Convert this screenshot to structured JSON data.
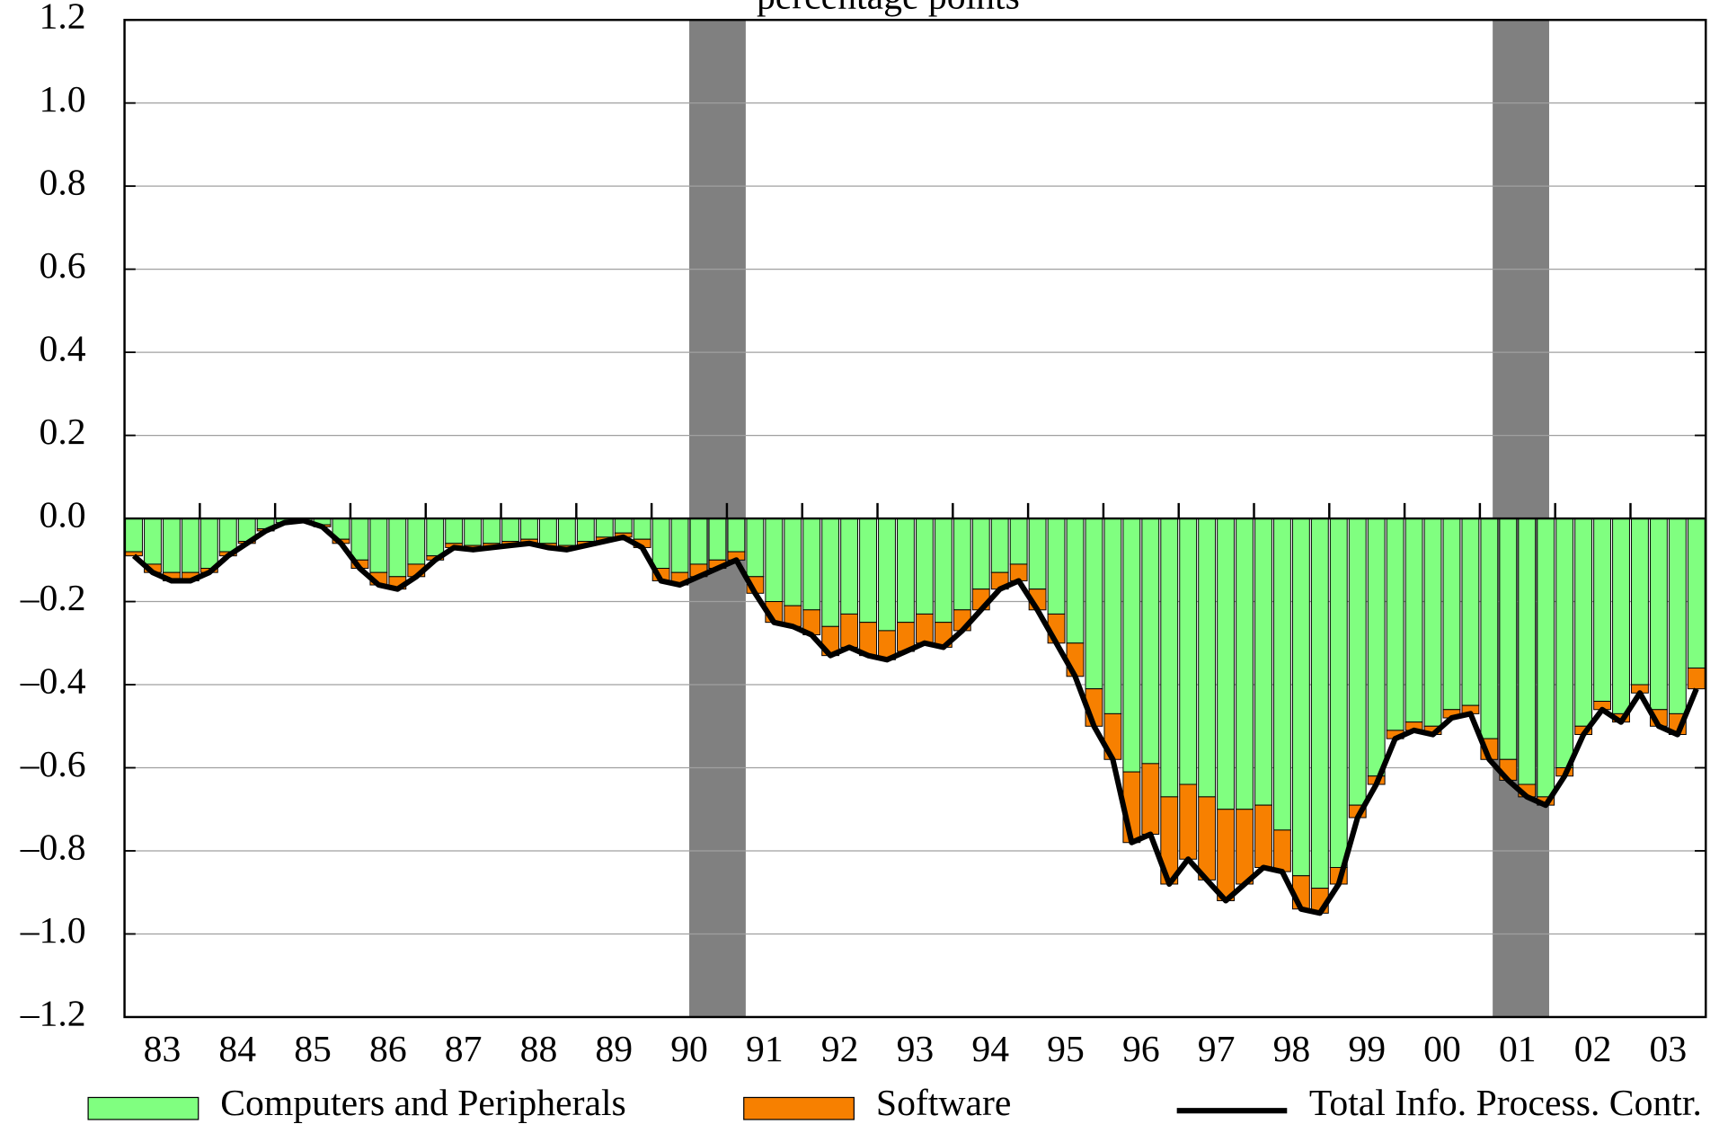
{
  "chart_data": {
    "type": "stacked_bar_line",
    "subtitle": "percentage points",
    "x": [
      1983.125,
      1983.375,
      1983.625,
      1983.875,
      1984.125,
      1984.375,
      1984.625,
      1984.875,
      1985.125,
      1985.375,
      1985.625,
      1985.875,
      1986.125,
      1986.375,
      1986.625,
      1986.875,
      1987.125,
      1987.375,
      1987.625,
      1987.875,
      1988.125,
      1988.375,
      1988.625,
      1988.875,
      1989.125,
      1989.375,
      1989.625,
      1989.875,
      1990.125,
      1990.375,
      1990.625,
      1990.875,
      1991.125,
      1991.375,
      1991.625,
      1991.875,
      1992.125,
      1992.375,
      1992.625,
      1992.875,
      1993.125,
      1993.375,
      1993.625,
      1993.875,
      1994.125,
      1994.375,
      1994.625,
      1994.875,
      1995.125,
      1995.375,
      1995.625,
      1995.875,
      1996.125,
      1996.375,
      1996.625,
      1996.875,
      1997.125,
      1997.375,
      1997.625,
      1997.875,
      1998.125,
      1998.375,
      1998.625,
      1998.875,
      1999.125,
      1999.375,
      1999.625,
      1999.875,
      2000.125,
      2000.375,
      2000.625,
      2000.875,
      2001.125,
      2001.375,
      2001.625,
      2001.875,
      2002.125,
      2002.375,
      2002.625,
      2002.875,
      2003.125,
      2003.375,
      2003.625,
      2003.875
    ],
    "series": [
      {
        "name": "Computers and Peripherals",
        "color": "#80ff80",
        "kind": "bar",
        "values": [
          -0.08,
          -0.11,
          -0.13,
          -0.13,
          -0.12,
          -0.08,
          -0.055,
          -0.025,
          -0.01,
          -0.005,
          -0.015,
          -0.05,
          -0.1,
          -0.13,
          -0.14,
          -0.11,
          -0.09,
          -0.06,
          -0.065,
          -0.06,
          -0.055,
          -0.05,
          -0.06,
          -0.065,
          -0.055,
          -0.045,
          -0.035,
          -0.05,
          -0.12,
          -0.13,
          -0.11,
          -0.1,
          -0.08,
          -0.14,
          -0.2,
          -0.21,
          -0.22,
          -0.26,
          -0.23,
          -0.25,
          -0.27,
          -0.25,
          -0.23,
          -0.25,
          -0.22,
          -0.17,
          -0.13,
          -0.11,
          -0.17,
          -0.23,
          -0.3,
          -0.41,
          -0.47,
          -0.61,
          -0.59,
          -0.67,
          -0.64,
          -0.67,
          -0.7,
          -0.7,
          -0.69,
          -0.75,
          -0.86,
          -0.89,
          -0.84,
          -0.69,
          -0.62,
          -0.51,
          -0.49,
          -0.5,
          -0.46,
          -0.45,
          -0.53,
          -0.58,
          -0.64,
          -0.67,
          -0.6,
          -0.5,
          -0.44,
          -0.47,
          -0.4,
          -0.46,
          -0.47,
          -0.36
        ]
      },
      {
        "name": "Software",
        "color": "#f78000",
        "kind": "bar",
        "values": [
          -0.01,
          -0.02,
          -0.02,
          -0.02,
          -0.01,
          -0.01,
          -0.005,
          -0.005,
          0,
          0,
          -0.005,
          -0.01,
          -0.02,
          -0.03,
          -0.03,
          -0.03,
          -0.01,
          -0.01,
          -0.01,
          -0.01,
          -0.01,
          -0.01,
          -0.01,
          -0.01,
          -0.01,
          -0.01,
          -0.01,
          -0.02,
          -0.03,
          -0.03,
          -0.03,
          -0.02,
          -0.02,
          -0.04,
          -0.05,
          -0.05,
          -0.06,
          -0.07,
          -0.08,
          -0.08,
          -0.07,
          -0.07,
          -0.07,
          -0.06,
          -0.05,
          -0.05,
          -0.04,
          -0.04,
          -0.05,
          -0.07,
          -0.08,
          -0.09,
          -0.11,
          -0.17,
          -0.17,
          -0.21,
          -0.18,
          -0.2,
          -0.22,
          -0.18,
          -0.15,
          -0.1,
          -0.08,
          -0.06,
          -0.04,
          -0.03,
          -0.02,
          -0.02,
          -0.02,
          -0.02,
          -0.02,
          -0.02,
          -0.05,
          -0.05,
          -0.03,
          -0.02,
          -0.02,
          -0.02,
          -0.02,
          -0.02,
          -0.02,
          -0.04,
          -0.05,
          -0.05
        ]
      },
      {
        "name": "Total Info. Process. Contr.",
        "color": "#000000",
        "kind": "line",
        "values": [
          -0.09,
          -0.13,
          -0.15,
          -0.15,
          -0.13,
          -0.09,
          -0.06,
          -0.03,
          -0.01,
          -0.005,
          -0.02,
          -0.06,
          -0.12,
          -0.16,
          -0.17,
          -0.14,
          -0.1,
          -0.07,
          -0.075,
          -0.07,
          -0.065,
          -0.06,
          -0.07,
          -0.075,
          -0.065,
          -0.055,
          -0.045,
          -0.07,
          -0.15,
          -0.16,
          -0.14,
          -0.12,
          -0.1,
          -0.18,
          -0.25,
          -0.26,
          -0.28,
          -0.33,
          -0.31,
          -0.33,
          -0.34,
          -0.32,
          -0.3,
          -0.31,
          -0.27,
          -0.22,
          -0.17,
          -0.15,
          -0.22,
          -0.3,
          -0.38,
          -0.5,
          -0.58,
          -0.78,
          -0.76,
          -0.88,
          -0.82,
          -0.87,
          -0.92,
          -0.88,
          -0.84,
          -0.85,
          -0.94,
          -0.95,
          -0.88,
          -0.72,
          -0.64,
          -0.53,
          -0.51,
          -0.52,
          -0.48,
          -0.47,
          -0.58,
          -0.63,
          -0.67,
          -0.69,
          -0.62,
          -0.52,
          -0.46,
          -0.49,
          -0.42,
          -0.5,
          -0.52,
          -0.41
        ]
      }
    ],
    "shaded_periods": [
      [
        1990.5,
        1991.25
      ],
      [
        2001.17,
        2001.92
      ]
    ],
    "shade_color": "#808080",
    "xlim": [
      1983,
      2004
    ],
    "xticks": [
      1984,
      1985,
      1986,
      1987,
      1988,
      1989,
      1990,
      1991,
      1992,
      1993,
      1994,
      1995,
      1996,
      1997,
      1998,
      1999,
      2000,
      2001,
      2002,
      2003
    ],
    "xtick_labels": [
      {
        "value": 1983.5,
        "label": "83"
      },
      {
        "value": 1984.5,
        "label": "84"
      },
      {
        "value": 1985.5,
        "label": "85"
      },
      {
        "value": 1986.5,
        "label": "86"
      },
      {
        "value": 1987.5,
        "label": "87"
      },
      {
        "value": 1988.5,
        "label": "88"
      },
      {
        "value": 1989.5,
        "label": "89"
      },
      {
        "value": 1990.5,
        "label": "90"
      },
      {
        "value": 1991.5,
        "label": "91"
      },
      {
        "value": 1992.5,
        "label": "92"
      },
      {
        "value": 1993.5,
        "label": "93"
      },
      {
        "value": 1994.5,
        "label": "94"
      },
      {
        "value": 1995.5,
        "label": "95"
      },
      {
        "value": 1996.5,
        "label": "96"
      },
      {
        "value": 1997.5,
        "label": "97"
      },
      {
        "value": 1998.5,
        "label": "98"
      },
      {
        "value": 1999.5,
        "label": "99"
      },
      {
        "value": 2000.5,
        "label": "00"
      },
      {
        "value": 2001.5,
        "label": "01"
      },
      {
        "value": 2002.5,
        "label": "02"
      },
      {
        "value": 2003.5,
        "label": "03"
      }
    ],
    "ylim": [
      -1.2,
      1.2
    ],
    "yticks": [
      {
        "value": -1.2,
        "label": "–1.2"
      },
      {
        "value": -1.0,
        "label": "–1.0"
      },
      {
        "value": -0.8,
        "label": "–0.8"
      },
      {
        "value": -0.6,
        "label": "–0.6"
      },
      {
        "value": -0.4,
        "label": "–0.4"
      },
      {
        "value": -0.2,
        "label": "–0.2"
      },
      {
        "value": 0,
        "label": "0.0"
      },
      0.2,
      0.4,
      0.6,
      0.8,
      {
        "value": 1.0,
        "label": "1.0"
      },
      1.2
    ],
    "grid": true,
    "legend": "bottom"
  }
}
